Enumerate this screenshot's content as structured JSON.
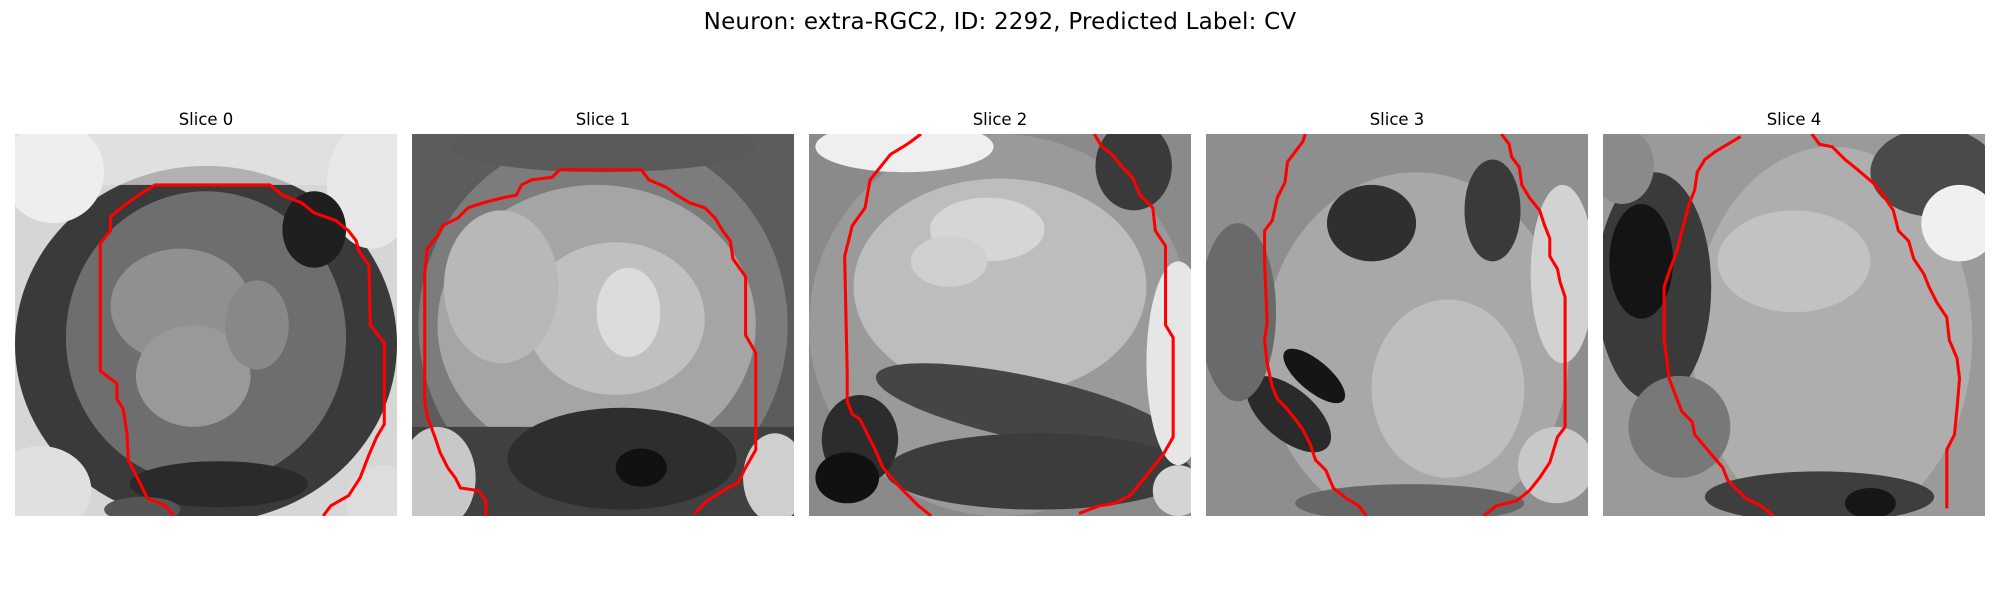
{
  "figure": {
    "title": "Neuron: extra-RGC2, ID: 2292, Predicted Label: CV",
    "panels": [
      {
        "title": "Slice 0"
      },
      {
        "title": "Slice 1"
      },
      {
        "title": "Slice 2"
      },
      {
        "title": "Slice 3"
      },
      {
        "title": "Slice 4"
      }
    ],
    "contour_color": "#ff0000"
  }
}
